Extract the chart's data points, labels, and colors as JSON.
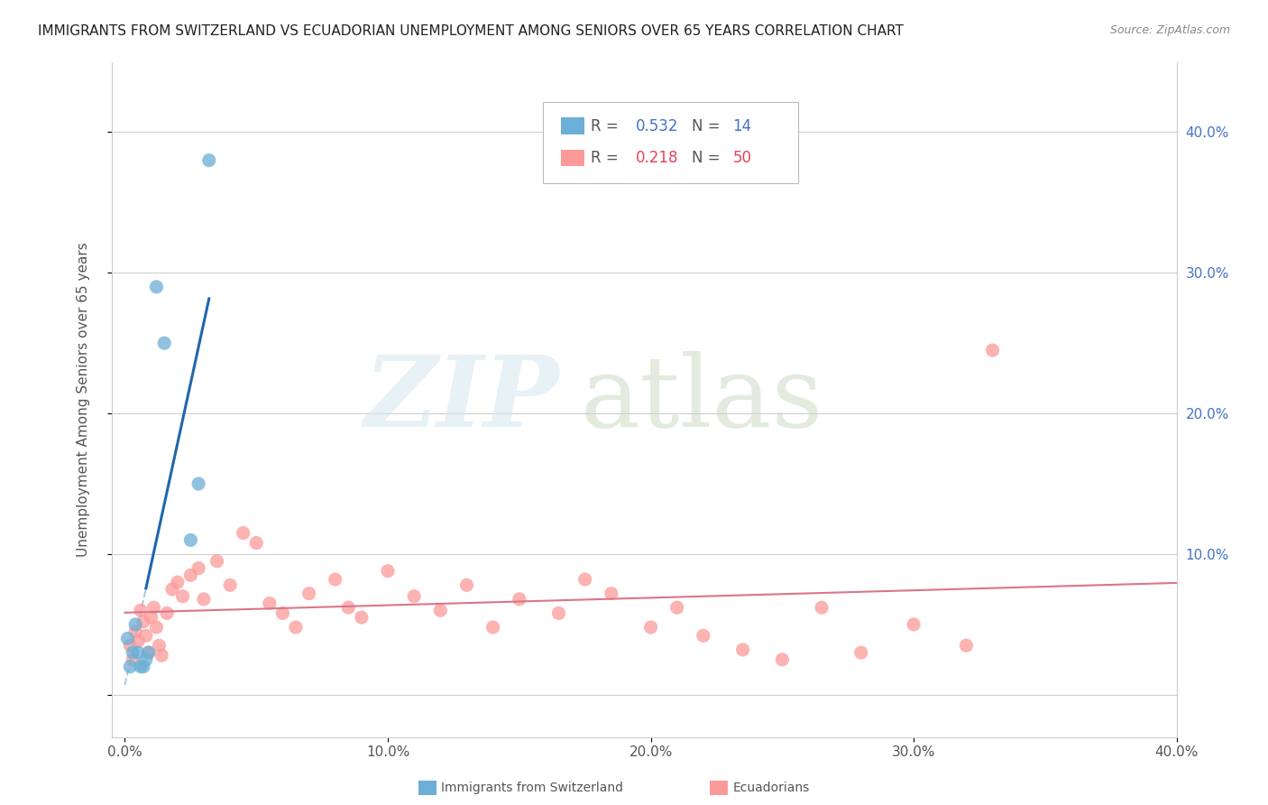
{
  "title": "IMMIGRANTS FROM SWITZERLAND VS ECUADORIAN UNEMPLOYMENT AMONG SENIORS OVER 65 YEARS CORRELATION CHART",
  "source": "Source: ZipAtlas.com",
  "ylabel": "Unemployment Among Seniors over 65 years",
  "xlim": [
    -0.005,
    0.4
  ],
  "ylim": [
    -0.03,
    0.45
  ],
  "xtick_vals": [
    0.0,
    0.1,
    0.2,
    0.3,
    0.4
  ],
  "xtick_labels": [
    "0.0%",
    "10.0%",
    "20.0%",
    "30.0%",
    "40.0%"
  ],
  "ytick_vals": [
    0.0,
    0.1,
    0.2,
    0.3,
    0.4
  ],
  "ytick_labels_right": [
    "",
    "10.0%",
    "20.0%",
    "30.0%",
    "40.0%"
  ],
  "legend_r1": "0.532",
  "legend_n1": "14",
  "legend_r2": "0.218",
  "legend_n2": "50",
  "swiss_color": "#6baed6",
  "ecuador_color": "#fb9a99",
  "swiss_line_color": "#2166ac",
  "swiss_dash_color": "#aec8e0",
  "ecuador_line_color": "#d9768a",
  "right_axis_color": "#4472c4",
  "swiss_x": [
    0.001,
    0.002,
    0.003,
    0.004,
    0.005,
    0.006,
    0.007,
    0.008,
    0.009,
    0.012,
    0.015,
    0.025,
    0.028,
    0.032
  ],
  "swiss_y": [
    0.04,
    0.02,
    0.03,
    0.05,
    0.03,
    0.02,
    0.02,
    0.025,
    0.03,
    0.29,
    0.25,
    0.11,
    0.15,
    0.38
  ],
  "ecuador_x": [
    0.002,
    0.003,
    0.004,
    0.005,
    0.006,
    0.007,
    0.008,
    0.009,
    0.01,
    0.011,
    0.012,
    0.013,
    0.014,
    0.016,
    0.018,
    0.02,
    0.022,
    0.025,
    0.028,
    0.03,
    0.035,
    0.04,
    0.045,
    0.05,
    0.055,
    0.06,
    0.065,
    0.07,
    0.08,
    0.085,
    0.09,
    0.1,
    0.11,
    0.12,
    0.13,
    0.14,
    0.15,
    0.165,
    0.175,
    0.185,
    0.2,
    0.21,
    0.22,
    0.235,
    0.25,
    0.265,
    0.28,
    0.3,
    0.32,
    0.33
  ],
  "ecuador_y": [
    0.035,
    0.025,
    0.045,
    0.038,
    0.06,
    0.052,
    0.042,
    0.03,
    0.055,
    0.062,
    0.048,
    0.035,
    0.028,
    0.058,
    0.075,
    0.08,
    0.07,
    0.085,
    0.09,
    0.068,
    0.095,
    0.078,
    0.115,
    0.108,
    0.065,
    0.058,
    0.048,
    0.072,
    0.082,
    0.062,
    0.055,
    0.088,
    0.07,
    0.06,
    0.078,
    0.048,
    0.068,
    0.058,
    0.082,
    0.072,
    0.048,
    0.062,
    0.042,
    0.032,
    0.025,
    0.062,
    0.03,
    0.05,
    0.035,
    0.245
  ]
}
